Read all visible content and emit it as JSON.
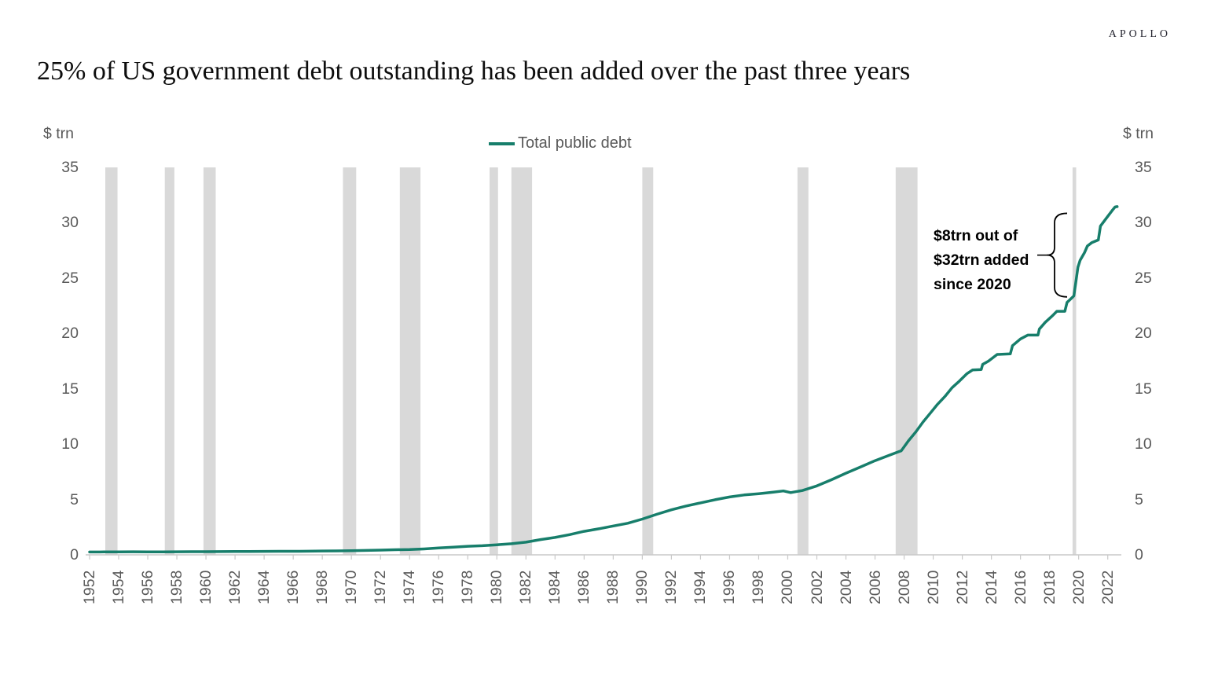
{
  "logo": "APOLLO",
  "title": "25% of US government debt outstanding has been added over the past three years",
  "chart_data": {
    "type": "line",
    "title": "25% of US government debt outstanding has been added over the past three years",
    "legend_label": "Total public debt",
    "legend_position": "top-center",
    "grid": "off",
    "y_axis": {
      "label": "$ trn",
      "min": 0,
      "max": 35,
      "ticks": [
        0,
        5,
        10,
        15,
        20,
        25,
        30,
        35
      ],
      "sides": [
        "left",
        "right"
      ]
    },
    "x_axis": {
      "tick_labels": [
        "1952",
        "1954",
        "1956",
        "1958",
        "1960",
        "1962",
        "1964",
        "1966",
        "1968",
        "1970",
        "1972",
        "1974",
        "1976",
        "1978",
        "1980",
        "1982",
        "1984",
        "1986",
        "1988",
        "1990",
        "1992",
        "1994",
        "1996",
        "1998",
        "2000",
        "2002",
        "2004",
        "2006",
        "2008",
        "2010",
        "2012",
        "2014",
        "2016",
        "2018",
        "2020",
        "2022"
      ],
      "x_display_offset_years": -0.5
    },
    "series": [
      {
        "name": "Total public debt",
        "color": "#177E6B",
        "points": [
          [
            1952.5,
            0.259
          ],
          [
            1953.5,
            0.266
          ],
          [
            1954.5,
            0.271
          ],
          [
            1955.5,
            0.274
          ],
          [
            1956.5,
            0.272
          ],
          [
            1957.5,
            0.271
          ],
          [
            1958.5,
            0.277
          ],
          [
            1959.5,
            0.285
          ],
          [
            1960.5,
            0.286
          ],
          [
            1961.5,
            0.289
          ],
          [
            1962.5,
            0.298
          ],
          [
            1963.5,
            0.306
          ],
          [
            1964.5,
            0.312
          ],
          [
            1965.5,
            0.317
          ],
          [
            1966.5,
            0.32
          ],
          [
            1967.5,
            0.327
          ],
          [
            1968.5,
            0.348
          ],
          [
            1969.5,
            0.354
          ],
          [
            1970.5,
            0.372
          ],
          [
            1971.5,
            0.398
          ],
          [
            1972.5,
            0.427
          ],
          [
            1973.5,
            0.458
          ],
          [
            1974.5,
            0.476
          ],
          [
            1975.5,
            0.533
          ],
          [
            1976.5,
            0.62
          ],
          [
            1977.5,
            0.699
          ],
          [
            1978.5,
            0.772
          ],
          [
            1979.5,
            0.827
          ],
          [
            1980.5,
            0.908
          ],
          [
            1981.5,
            0.998
          ],
          [
            1982.5,
            1.142
          ],
          [
            1983.5,
            1.377
          ],
          [
            1984.5,
            1.572
          ],
          [
            1985.5,
            1.823
          ],
          [
            1986.5,
            2.125
          ],
          [
            1987.5,
            2.35
          ],
          [
            1988.5,
            2.602
          ],
          [
            1989.5,
            2.857
          ],
          [
            1990.5,
            3.233
          ],
          [
            1991.5,
            3.665
          ],
          [
            1992.5,
            4.065
          ],
          [
            1993.5,
            4.411
          ],
          [
            1994.5,
            4.693
          ],
          [
            1995.5,
            4.974
          ],
          [
            1996.5,
            5.225
          ],
          [
            1997.5,
            5.413
          ],
          [
            1998.5,
            5.526
          ],
          [
            1999.5,
            5.656
          ],
          [
            2000.2,
            5.774
          ],
          [
            2000.7,
            5.622
          ],
          [
            2001.5,
            5.807
          ],
          [
            2002.5,
            6.228
          ],
          [
            2003.5,
            6.783
          ],
          [
            2004.5,
            7.379
          ],
          [
            2005.5,
            7.933
          ],
          [
            2006.5,
            8.507
          ],
          [
            2007.5,
            9.008
          ],
          [
            2008.3,
            9.4
          ],
          [
            2008.8,
            10.3
          ],
          [
            2009.3,
            11.1
          ],
          [
            2009.8,
            12.0
          ],
          [
            2010.3,
            12.8
          ],
          [
            2010.8,
            13.6
          ],
          [
            2011.3,
            14.3
          ],
          [
            2011.8,
            15.1
          ],
          [
            2012.3,
            15.7
          ],
          [
            2012.8,
            16.35
          ],
          [
            2013.2,
            16.7
          ],
          [
            2013.8,
            16.74
          ],
          [
            2013.9,
            17.2
          ],
          [
            2014.3,
            17.5
          ],
          [
            2014.9,
            18.1
          ],
          [
            2015.8,
            18.15
          ],
          [
            2015.95,
            18.9
          ],
          [
            2016.5,
            19.5
          ],
          [
            2017.0,
            19.85
          ],
          [
            2017.7,
            19.85
          ],
          [
            2017.8,
            20.4
          ],
          [
            2018.2,
            21.0
          ],
          [
            2018.7,
            21.6
          ],
          [
            2019.0,
            22.0
          ],
          [
            2019.55,
            22.0
          ],
          [
            2019.7,
            22.8
          ],
          [
            2020.1,
            23.3
          ],
          [
            2020.17,
            23.4
          ],
          [
            2020.45,
            26.0
          ],
          [
            2020.6,
            26.6
          ],
          [
            2020.9,
            27.3
          ],
          [
            2021.1,
            27.9
          ],
          [
            2021.4,
            28.2
          ],
          [
            2021.85,
            28.45
          ],
          [
            2022.0,
            29.7
          ],
          [
            2022.4,
            30.4
          ],
          [
            2022.8,
            31.1
          ],
          [
            2023.0,
            31.42
          ],
          [
            2023.15,
            31.46
          ]
        ]
      }
    ],
    "recession_bands": {
      "color": "#D9D9D9",
      "ranges": [
        [
          1953.58,
          1954.42
        ],
        [
          1957.67,
          1958.33
        ],
        [
          1960.33,
          1961.17
        ],
        [
          1969.92,
          1970.83
        ],
        [
          1973.83,
          1975.25
        ],
        [
          1980.0,
          1980.58
        ],
        [
          1981.5,
          1982.92
        ],
        [
          1990.5,
          1991.25
        ],
        [
          2001.17,
          2001.92
        ],
        [
          2007.92,
          2009.42
        ],
        [
          2020.08,
          2020.33
        ]
      ]
    },
    "annotation": {
      "lines": [
        "$8trn out of",
        "$32trn added",
        "since 2020"
      ],
      "brace_value_range": [
        23.3,
        30.85
      ]
    }
  },
  "colors": {
    "line": "#177E6B",
    "band": "#D9D9D9",
    "axis": "#C9C9C9",
    "text_gray": "#595959",
    "annotation_text": "#000000"
  }
}
